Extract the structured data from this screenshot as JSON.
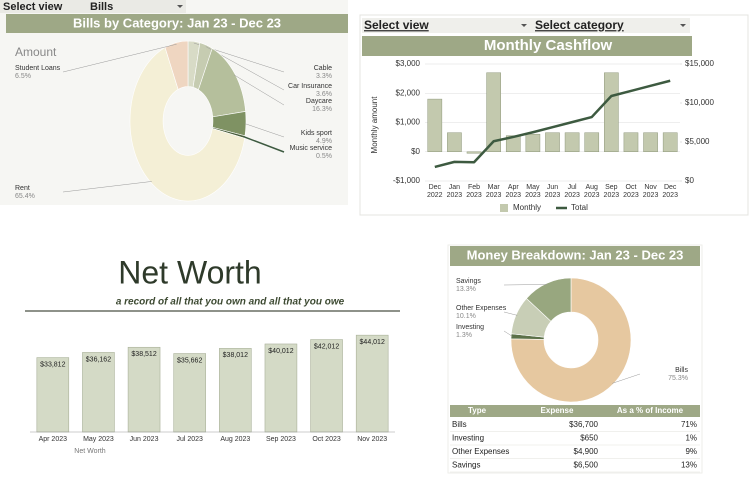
{
  "controls": {
    "bills_view": {
      "label": "Select view",
      "value": "Bills"
    },
    "cashflow_view": "Select view",
    "cashflow_category": "Select category"
  },
  "chart_data": [
    {
      "type": "pie",
      "title": "Bills by Category: Jan 23 - Dec 23",
      "series_label": "Amount",
      "categories": [
        "Cable",
        "Car Insurance",
        "Daycare",
        "Kids sport",
        "Music service",
        "Rent",
        "Student Loans"
      ],
      "values": [
        3.3,
        3.6,
        16.3,
        4.9,
        0.5,
        65.4,
        6.5
      ],
      "value_labels": [
        "3.3%",
        "3.6%",
        "16.3%",
        "4.9%",
        "0.5%",
        "65.4%",
        "6.5%"
      ],
      "colors": [
        "#d8dbc6",
        "#c6ccb1",
        "#b5bf9c",
        "#7f9263",
        "#4a5e3b",
        "#f4efd6",
        "#efd6c1"
      ]
    },
    {
      "type": "combo",
      "title": "Monthly Cashflow",
      "ylabel": "Monthly amount",
      "categories": [
        "Dec 2022",
        "Jan 2023",
        "Feb 2023",
        "Mar 2023",
        "Apr 2023",
        "May 2023",
        "Jun 2023",
        "Jul 2023",
        "Aug 2023",
        "Sep 2023",
        "Oct 2023",
        "Nov 2023",
        "Dec 2023"
      ],
      "series": [
        {
          "name": "Monthly",
          "type": "bar",
          "axis": "y",
          "color": "#c3c9ae",
          "values": [
            1800,
            650,
            -50,
            2700,
            550,
            600,
            650,
            650,
            650,
            2700,
            650,
            650,
            650
          ]
        },
        {
          "name": "Total",
          "type": "line",
          "axis": "y2",
          "color": "#3d5a40",
          "values": [
            1800,
            2450,
            2400,
            5100,
            5650,
            6250,
            6900,
            7550,
            8200,
            10900,
            11550,
            12200,
            12850
          ]
        }
      ],
      "ylim": [
        -1000,
        3000
      ],
      "yticks": [
        {
          "value": -1000,
          "label": "-$1,000"
        },
        {
          "value": 0,
          "label": "$0"
        },
        {
          "value": 1000,
          "label": "$1,000"
        },
        {
          "value": 2000,
          "label": "$2,000"
        },
        {
          "value": 3000,
          "label": "$3,000"
        }
      ],
      "y2lim": [
        0,
        15000
      ],
      "y2ticks": [
        {
          "value": 0,
          "label": "$0"
        },
        {
          "value": 5000,
          "label": "$5,000"
        },
        {
          "value": 10000,
          "label": "$10,000"
        },
        {
          "value": 15000,
          "label": "$15,000"
        }
      ],
      "grid": true
    },
    {
      "type": "bar",
      "title": "Net Worth",
      "subtitle": "a record of all that you own and all that you owe",
      "categories": [
        "Apr 2023",
        "May 2023",
        "Jun 2023",
        "Jul 2023",
        "Aug 2023",
        "Sep 2023",
        "Oct 2023",
        "Nov 2023"
      ],
      "series": [
        {
          "name": "Net Worth",
          "color": "#d4dac6",
          "values": [
            33812,
            36162,
            38512,
            35662,
            38012,
            40012,
            42012,
            44012
          ],
          "value_labels": [
            "$33,812",
            "$36,162",
            "$38,512",
            "$35,662",
            "$38,012",
            "$40,012",
            "$42,012",
            "$44,012"
          ]
        }
      ],
      "ylim": [
        0,
        50000
      ]
    },
    {
      "type": "pie",
      "title": "Money Breakdown: Jan 23 - Dec 23",
      "categories": [
        "Bills",
        "Investing",
        "Other Expenses",
        "Savings"
      ],
      "values": [
        75.3,
        1.3,
        10.1,
        13.3
      ],
      "value_labels": [
        "75.3%",
        "1.3%",
        "10.1%",
        "13.3%"
      ],
      "colors": [
        "#e6c8a0",
        "#5b7048",
        "#c8ceb6",
        "#98a77f"
      ]
    }
  ],
  "table": {
    "columns": [
      "Type",
      "Expense",
      "As a % of Income"
    ],
    "rows": [
      [
        "Bills",
        "$36,700",
        "71%"
      ],
      [
        "Investing",
        "$650",
        "1%"
      ],
      [
        "Other Expenses",
        "$4,900",
        "9%"
      ],
      [
        "Savings",
        "$6,500",
        "13%"
      ]
    ]
  }
}
